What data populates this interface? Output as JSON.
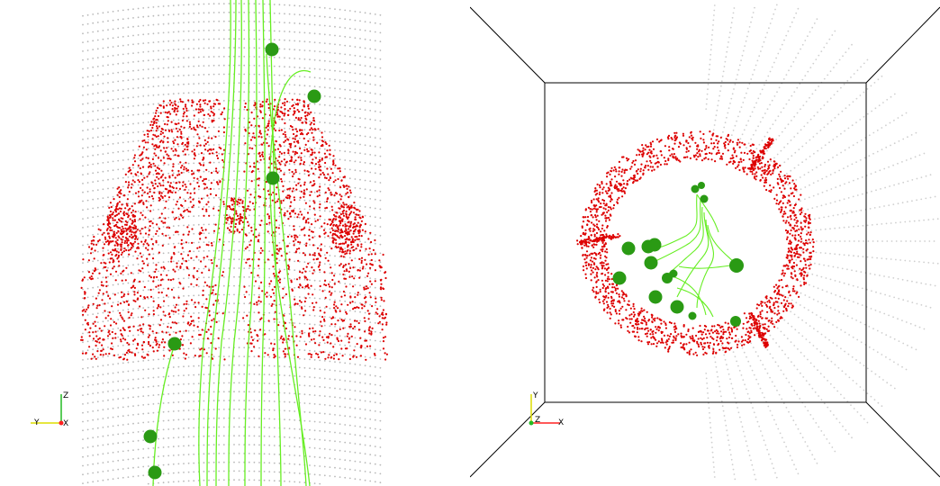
{
  "colors": {
    "background": "#ffffff",
    "mesh_points": "#b8b8b8",
    "particles": "#dd0000",
    "streamlines": "#66ee22",
    "seed_spheres": "#2a9a14",
    "axis_x": "#ff2222",
    "axis_y": "#dddd00",
    "axis_z": "#22bb22",
    "frame": "#000000"
  },
  "left_view": {
    "name": "side-view",
    "axes": {
      "vertical": "Z",
      "horizontal": "Y",
      "out": "X"
    }
  },
  "right_view": {
    "name": "front-view",
    "axes": {
      "vertical": "Y",
      "horizontal": "X",
      "out": "Z"
    }
  }
}
